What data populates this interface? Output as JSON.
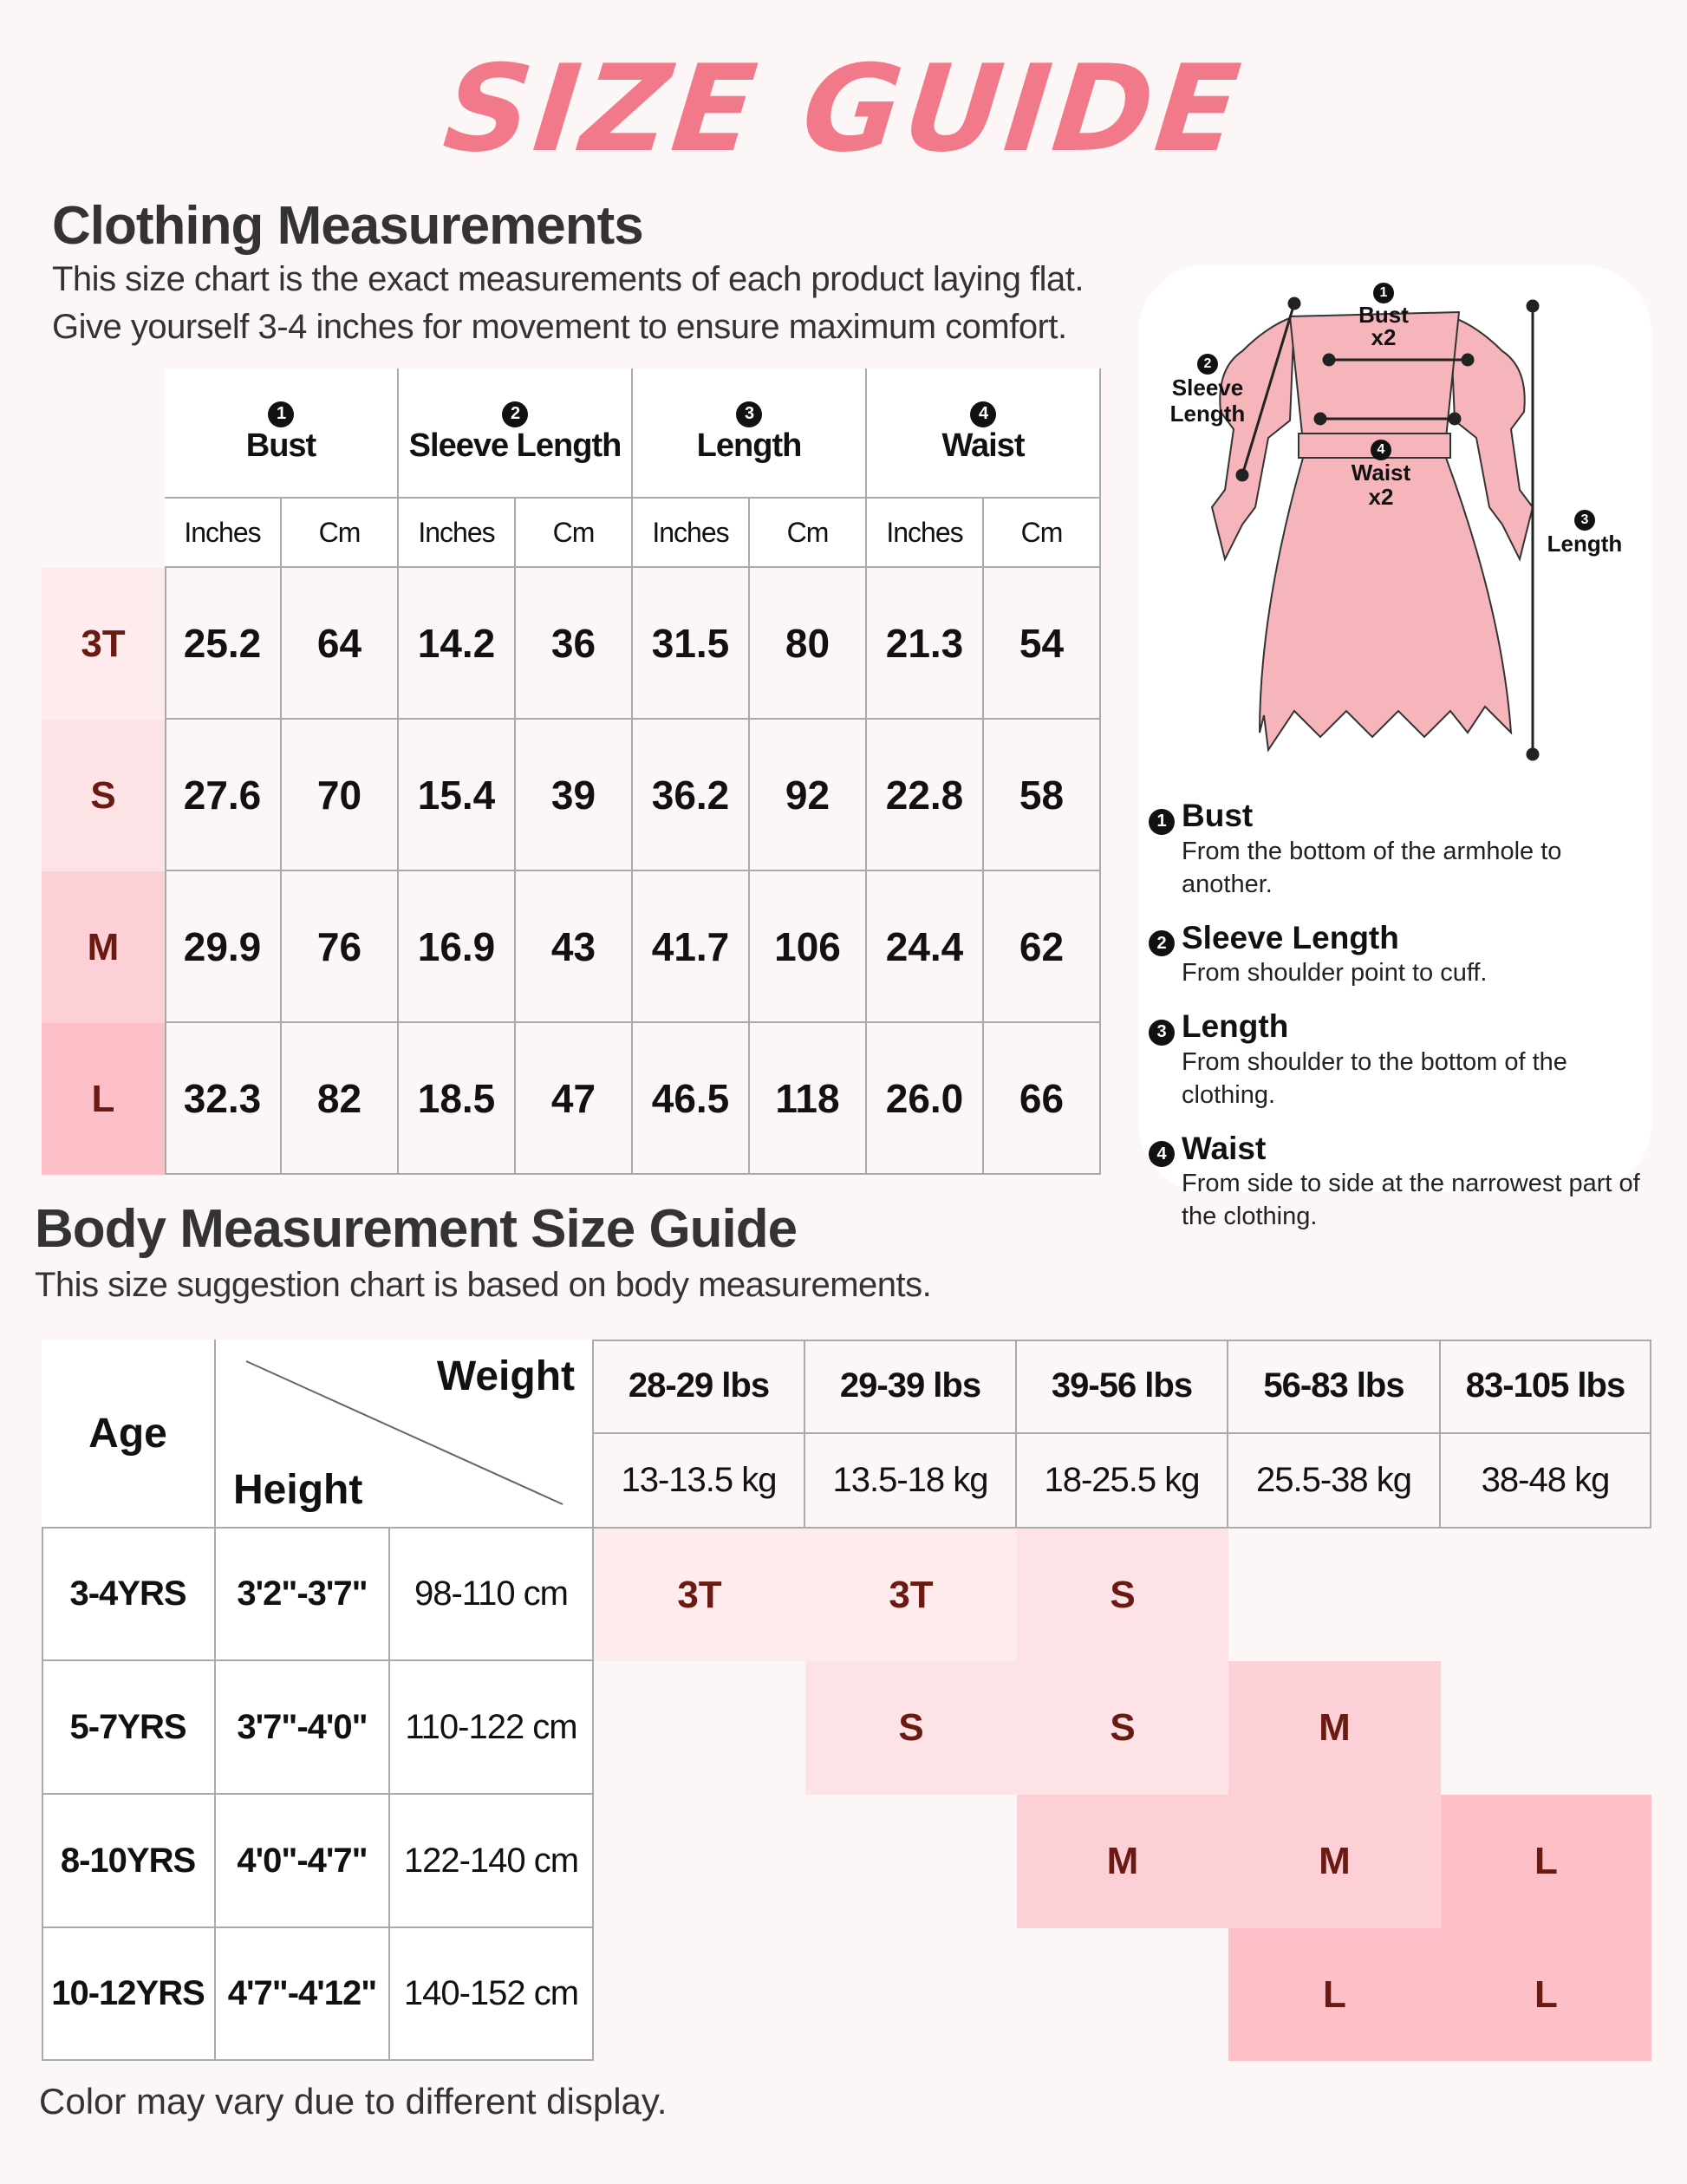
{
  "title": "SIZE GUIDE",
  "clothing": {
    "heading": "Clothing Measurements",
    "subtitle_1": "This size chart is the exact measurements of each product laying flat.",
    "subtitle_2": "Give yourself 3-4 inches for movement to ensure maximum comfort.",
    "groups": [
      {
        "num": "1",
        "label": "Bust"
      },
      {
        "num": "2",
        "label": "Sleeve Length"
      },
      {
        "num": "3",
        "label": "Length"
      },
      {
        "num": "4",
        "label": "Waist"
      }
    ],
    "units": [
      "Inches",
      "Cm"
    ],
    "rows": [
      {
        "size": "3T",
        "values": [
          "25.2",
          "64",
          "14.2",
          "36",
          "31.5",
          "80",
          "21.3",
          "54"
        ]
      },
      {
        "size": "S",
        "values": [
          "27.6",
          "70",
          "15.4",
          "39",
          "36.2",
          "92",
          "22.8",
          "58"
        ]
      },
      {
        "size": "M",
        "values": [
          "29.9",
          "76",
          "16.9",
          "43",
          "41.7",
          "106",
          "24.4",
          "62"
        ]
      },
      {
        "size": "L",
        "values": [
          "32.3",
          "82",
          "18.5",
          "47",
          "46.5",
          "118",
          "26.0",
          "66"
        ]
      }
    ]
  },
  "diagram": {
    "bust_label": "Bust",
    "bust_x": "x2",
    "sleeve_label_1": "Sleeve",
    "sleeve_label_2": "Length",
    "waist_label": "Waist",
    "waist_x": "x2",
    "length_label": "Length",
    "definitions": [
      {
        "num": "1",
        "title": "Bust",
        "text": "From the bottom of the armhole to another."
      },
      {
        "num": "2",
        "title": "Sleeve Length",
        "text": "From shoulder point to cuff."
      },
      {
        "num": "3",
        "title": "Length",
        "text": "From shoulder to the bottom of the clothing."
      },
      {
        "num": "4",
        "title": "Waist",
        "text": "From side to side at the narrowest part of the clothing."
      }
    ]
  },
  "body": {
    "heading": "Body Measurement Size Guide",
    "subtitle": "This size suggestion chart is based on body measurements.",
    "age_label": "Age",
    "weight_label": "Weight",
    "height_label": "Height",
    "weights_lbs": [
      "28-29 lbs",
      "29-39 lbs",
      "39-56 lbs",
      "56-83 lbs",
      "83-105 lbs"
    ],
    "weights_kg": [
      "13-13.5 kg",
      "13.5-18 kg",
      "18-25.5 kg",
      "25.5-38 kg",
      "38-48 kg"
    ],
    "rows": [
      {
        "age": "3-4YRS",
        "height_in": "3'2\"-3'7\"",
        "height_cm": "98-110 cm",
        "sizes": [
          "3T",
          "3T",
          "S",
          "",
          ""
        ]
      },
      {
        "age": "5-7YRS",
        "height_in": "3'7\"-4'0\"",
        "height_cm": "110-122 cm",
        "sizes": [
          "",
          "S",
          "S",
          "M",
          ""
        ]
      },
      {
        "age": "8-10YRS",
        "height_in": "4'0\"-4'7\"",
        "height_cm": "122-140 cm",
        "sizes": [
          "",
          "",
          "M",
          "M",
          "L"
        ]
      },
      {
        "age": "10-12YRS",
        "height_in": "4'7\"-4'12\"",
        "height_cm": "140-152 cm",
        "sizes": [
          "",
          "",
          "",
          "L",
          "L"
        ]
      }
    ]
  },
  "footer": "Color may vary due to different display.",
  "colors": {
    "title": "#f2798a",
    "size_text": "#6b1a12",
    "3T": "#fdebed",
    "S": "#fde2e6",
    "M": "#fdd0d8",
    "L": "#fdc0c9"
  }
}
